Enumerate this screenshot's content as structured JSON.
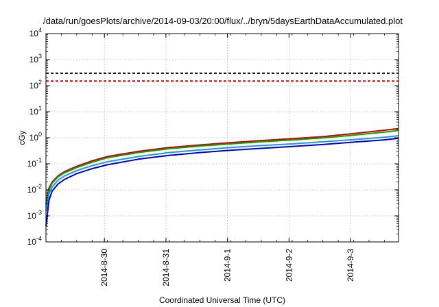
{
  "chart_data": {
    "type": "line",
    "title": "/data/run/goesPlots/archive/2014-09-03/20:00/flux/../bryn/5daysEarthDataAccumulated.plot",
    "xlabel": "Coordinated Universal Time (UTC)",
    "ylabel": "cGy",
    "yscale": "log",
    "grid": true,
    "legend": "none",
    "xlim_days": [
      0,
      5.73
    ],
    "ylim": [
      0.0001,
      10000
    ],
    "x_ticks": [
      {
        "day": 0.95,
        "label": "2014-8-30"
      },
      {
        "day": 1.95,
        "label": "2014-8-31"
      },
      {
        "day": 2.95,
        "label": "2014-9-1"
      },
      {
        "day": 3.95,
        "label": "2014-9-2"
      },
      {
        "day": 4.95,
        "label": "2014-9-3"
      }
    ],
    "y_ticks": [
      {
        "value": 0.0001,
        "base": "10",
        "exp": "-4"
      },
      {
        "value": 0.001,
        "base": "10",
        "exp": "-3"
      },
      {
        "value": 0.01,
        "base": "10",
        "exp": "-2"
      },
      {
        "value": 0.1,
        "base": "10",
        "exp": "-1"
      },
      {
        "value": 1,
        "base": "10",
        "exp": "0"
      },
      {
        "value": 10,
        "base": "10",
        "exp": "1"
      },
      {
        "value": 100,
        "base": "10",
        "exp": "2"
      },
      {
        "value": 1000,
        "base": "10",
        "exp": "3"
      },
      {
        "value": 10000,
        "base": "10",
        "exp": "4"
      }
    ],
    "thresholds": [
      {
        "value": 300,
        "color": "#000000"
      },
      {
        "value": 150,
        "color": "#dd0000"
      }
    ],
    "series": [
      {
        "color": "#cc0000",
        "x": [
          0,
          0.05,
          0.1,
          0.2,
          0.3,
          0.5,
          0.75,
          1.0,
          1.5,
          2.0,
          2.5,
          3.0,
          3.5,
          4.0,
          4.5,
          5.0,
          5.5,
          5.73
        ],
        "y": [
          0.003,
          0.012,
          0.02,
          0.035,
          0.05,
          0.08,
          0.13,
          0.19,
          0.3,
          0.42,
          0.53,
          0.65,
          0.78,
          0.92,
          1.1,
          1.45,
          1.95,
          2.25
        ]
      },
      {
        "color": "#00aa00",
        "x": [
          0,
          0.05,
          0.1,
          0.2,
          0.3,
          0.5,
          0.75,
          1.0,
          1.5,
          2.0,
          2.5,
          3.0,
          3.5,
          4.0,
          4.5,
          5.0,
          5.5,
          5.73
        ],
        "y": [
          0.0025,
          0.01,
          0.018,
          0.032,
          0.045,
          0.072,
          0.115,
          0.17,
          0.27,
          0.38,
          0.48,
          0.58,
          0.7,
          0.82,
          0.98,
          1.25,
          1.65,
          1.9
        ]
      },
      {
        "color": "#1e90ff",
        "x": [
          0,
          0.05,
          0.1,
          0.2,
          0.3,
          0.5,
          0.75,
          1.0,
          1.5,
          2.0,
          2.5,
          3.0,
          3.5,
          4.0,
          4.5,
          5.0,
          5.5,
          5.73
        ],
        "y": [
          0.0015,
          0.007,
          0.013,
          0.024,
          0.034,
          0.055,
          0.085,
          0.12,
          0.19,
          0.27,
          0.34,
          0.42,
          0.5,
          0.58,
          0.7,
          0.85,
          1.05,
          1.2
        ]
      },
      {
        "color": "#0000cc",
        "x": [
          0,
          0.05,
          0.1,
          0.2,
          0.3,
          0.5,
          0.75,
          1.0,
          1.5,
          2.0,
          2.5,
          3.0,
          3.5,
          4.0,
          4.5,
          5.0,
          5.5,
          5.73
        ],
        "y": [
          0.0004,
          0.004,
          0.009,
          0.017,
          0.025,
          0.042,
          0.065,
          0.092,
          0.15,
          0.21,
          0.27,
          0.33,
          0.39,
          0.46,
          0.55,
          0.68,
          0.83,
          0.95
        ]
      }
    ]
  }
}
